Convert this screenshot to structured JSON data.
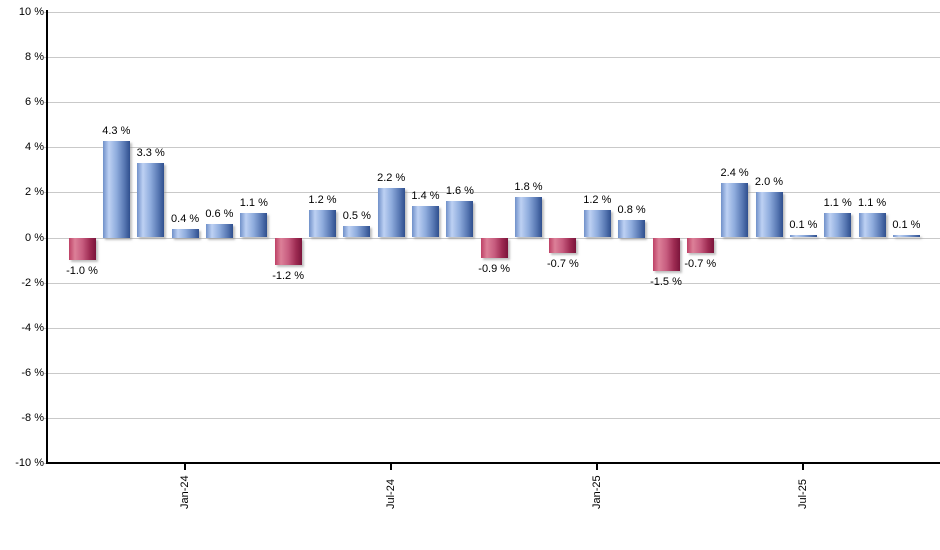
{
  "chart_data": {
    "type": "bar",
    "title": "",
    "unit": "%",
    "value_label_suffix": " %",
    "bars": [
      {
        "label": "-1.0 %",
        "value": -1.0
      },
      {
        "label": "4.3 %",
        "value": 4.3
      },
      {
        "label": "3.3 %",
        "value": 3.3
      },
      {
        "label": "0.4 %",
        "value": 0.4
      },
      {
        "label": "0.6 %",
        "value": 0.6
      },
      {
        "label": "1.1 %",
        "value": 1.1
      },
      {
        "label": "-1.2 %",
        "value": -1.2
      },
      {
        "label": "1.2 %",
        "value": 1.2
      },
      {
        "label": "0.5 %",
        "value": 0.5
      },
      {
        "label": "2.2 %",
        "value": 2.2
      },
      {
        "label": "1.4 %",
        "value": 1.4
      },
      {
        "label": "1.6 %",
        "value": 1.6
      },
      {
        "label": "-0.9 %",
        "value": -0.9
      },
      {
        "label": "1.8 %",
        "value": 1.8
      },
      {
        "label": "-0.7 %",
        "value": -0.7
      },
      {
        "label": "1.2 %",
        "value": 1.2
      },
      {
        "label": "0.8 %",
        "value": 0.8
      },
      {
        "label": "-1.5 %",
        "value": -1.5
      },
      {
        "label": "-0.7 %",
        "value": -0.7
      },
      {
        "label": "2.4 %",
        "value": 2.4
      },
      {
        "label": "2.0 %",
        "value": 2.0
      },
      {
        "label": "0.1 %",
        "value": 0.1
      },
      {
        "label": "1.1 %",
        "value": 1.1
      },
      {
        "label": "1.1 %",
        "value": 1.1
      },
      {
        "label": "0.1 %",
        "value": 0.1
      }
    ],
    "x_ticks": [
      {
        "label": "Jan-24",
        "bar_index": 3
      },
      {
        "label": "Jul-24",
        "bar_index": 9
      },
      {
        "label": "Jan-25",
        "bar_index": 15
      },
      {
        "label": "Jul-25",
        "bar_index": 21
      }
    ],
    "y_ticks": [
      {
        "label": "10 %",
        "value": 10
      },
      {
        "label": "8 %",
        "value": 8
      },
      {
        "label": "6 %",
        "value": 6
      },
      {
        "label": "4 %",
        "value": 4
      },
      {
        "label": "2 %",
        "value": 2
      },
      {
        "label": "0 %",
        "value": 0
      },
      {
        "label": "-2 %",
        "value": -2
      },
      {
        "label": "-4 %",
        "value": -4
      },
      {
        "label": "-6 %",
        "value": -6
      },
      {
        "label": "-8 %",
        "value": -8
      },
      {
        "label": "-10 %",
        "value": -10
      }
    ],
    "ylim": [
      -10,
      10
    ],
    "grid": true,
    "legend": "none",
    "colors": {
      "background": "#FFFFFF",
      "gridline": "#C9C9C9",
      "axis": "#000000",
      "label_text": "#000000",
      "positive_stops": [
        "#7090C9",
        "#BDD1F3",
        "#8FACDD",
        "#5A7AB5",
        "#2F4F8E"
      ],
      "negative_stops": [
        "#BE4166",
        "#DC8098",
        "#C75C7F",
        "#9D2B52",
        "#7B143B"
      ],
      "bar_shadow": "rgba(140,140,140,0.55)"
    }
  }
}
